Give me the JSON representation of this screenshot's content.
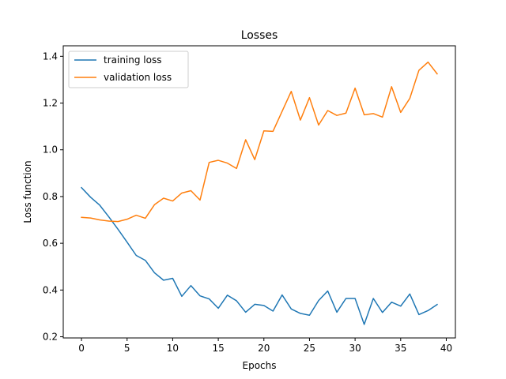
{
  "chart_data": {
    "type": "line",
    "title": "Losses",
    "xlabel": "Epochs",
    "ylabel": "Loss function",
    "xlim": [
      -2,
      41
    ],
    "ylim": [
      0.195,
      1.445
    ],
    "xticks": [
      0,
      5,
      10,
      15,
      20,
      25,
      30,
      35,
      40
    ],
    "yticks": [
      0.2,
      0.4,
      0.6,
      0.8,
      1.0,
      1.2,
      1.4
    ],
    "grid": false,
    "legend_position": "upper-left",
    "x": [
      0,
      1,
      2,
      3,
      4,
      5,
      6,
      7,
      8,
      9,
      10,
      11,
      12,
      13,
      14,
      15,
      16,
      17,
      18,
      19,
      20,
      21,
      22,
      23,
      24,
      25,
      26,
      27,
      28,
      29,
      30,
      31,
      32,
      33,
      34,
      35,
      36,
      37,
      38,
      39
    ],
    "series": [
      {
        "name": "training loss",
        "color": "#1f77b4",
        "values": [
          0.838,
          0.797,
          0.763,
          0.713,
          0.66,
          0.605,
          0.548,
          0.527,
          0.474,
          0.442,
          0.45,
          0.373,
          0.419,
          0.375,
          0.362,
          0.322,
          0.378,
          0.354,
          0.305,
          0.339,
          0.334,
          0.31,
          0.379,
          0.319,
          0.3,
          0.292,
          0.355,
          0.396,
          0.305,
          0.364,
          0.364,
          0.253,
          0.364,
          0.304,
          0.348,
          0.331,
          0.383,
          0.295,
          0.312,
          0.338
        ]
      },
      {
        "name": "validation loss",
        "color": "#ff7f0e",
        "values": [
          0.711,
          0.708,
          0.7,
          0.695,
          0.693,
          0.703,
          0.72,
          0.707,
          0.765,
          0.793,
          0.781,
          0.815,
          0.825,
          0.785,
          0.946,
          0.955,
          0.943,
          0.92,
          1.043,
          0.958,
          1.081,
          1.079,
          1.165,
          1.25,
          1.127,
          1.223,
          1.106,
          1.168,
          1.147,
          1.157,
          1.264,
          1.15,
          1.155,
          1.14,
          1.27,
          1.16,
          1.22,
          1.34,
          1.375,
          1.325
        ]
      }
    ]
  }
}
